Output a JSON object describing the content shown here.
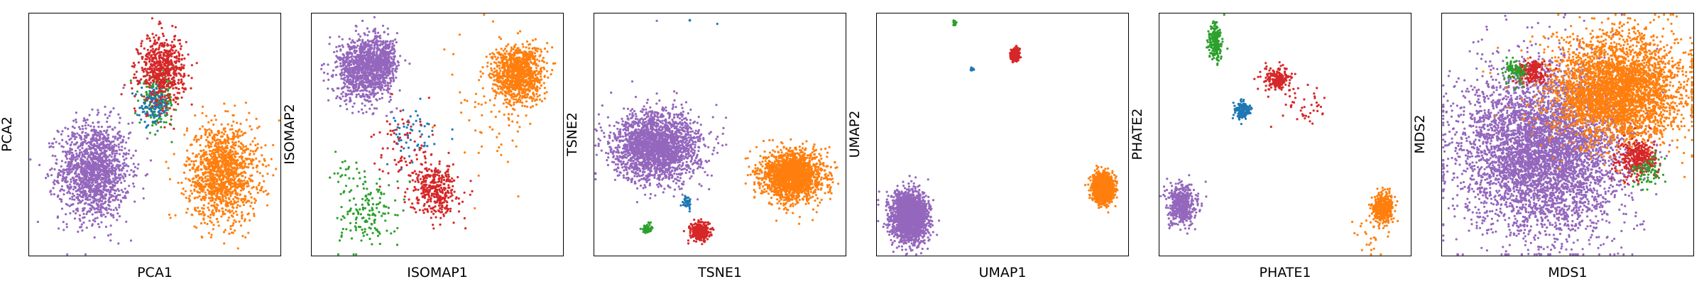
{
  "colors": {
    "blue": "#1f77b4",
    "orange": "#ff7f0e",
    "green": "#2ca02c",
    "red": "#d62728",
    "purple": "#9467bd"
  },
  "chart_data": [
    {
      "type": "scatter",
      "title": "",
      "xlabel": "PCA1",
      "ylabel": "PCA2",
      "ticks": "none",
      "grid": false,
      "legend": "none",
      "xlim": [
        0,
        100
      ],
      "ylim": [
        0,
        100
      ],
      "clusters": [
        {
          "color": "purple",
          "cx": 26,
          "cy": 35,
          "sx": 7,
          "sy": 10,
          "n": 1500
        },
        {
          "color": "orange",
          "cx": 77,
          "cy": 34,
          "sx": 7,
          "sy": 10,
          "n": 1300
        },
        {
          "color": "green",
          "cx": 51,
          "cy": 64,
          "sx": 3.5,
          "sy": 5,
          "n": 180
        },
        {
          "color": "blue",
          "cx": 50,
          "cy": 62,
          "sx": 3,
          "sy": 4,
          "n": 130
        },
        {
          "color": "red",
          "cx": 53,
          "cy": 77,
          "sx": 4.5,
          "sy": 7,
          "n": 600
        }
      ]
    },
    {
      "type": "scatter",
      "title": "",
      "xlabel": "ISOMAP1",
      "ylabel": "ISOMAP2",
      "ticks": "none",
      "grid": false,
      "legend": "none",
      "xlim": [
        0,
        100
      ],
      "ylim": [
        0,
        100
      ],
      "clusters": [
        {
          "color": "purple",
          "cx": 21,
          "cy": 77,
          "sx": 5.5,
          "sy": 6.5,
          "n": 1100
        },
        {
          "color": "purple",
          "cx": 29,
          "cy": 81,
          "sx": 2.5,
          "sy": 5,
          "n": 300
        },
        {
          "color": "orange",
          "cx": 82,
          "cy": 75,
          "sx": 5,
          "sy": 6,
          "n": 1000
        },
        {
          "color": "orange",
          "cx": 72,
          "cy": 58,
          "sx": 8,
          "sy": 15,
          "n": 60
        },
        {
          "color": "blue",
          "cx": 40,
          "cy": 49,
          "sx": 5,
          "sy": 6,
          "n": 60
        },
        {
          "color": "red",
          "cx": 49,
          "cy": 27,
          "sx": 4.5,
          "sy": 5.5,
          "n": 380
        },
        {
          "color": "red",
          "cx": 37,
          "cy": 43,
          "sx": 6,
          "sy": 8,
          "n": 70
        },
        {
          "color": "green",
          "cx": 22,
          "cy": 17,
          "sx": 6,
          "sy": 7,
          "n": 150
        },
        {
          "color": "green",
          "cx": 16,
          "cy": 33,
          "sx": 4,
          "sy": 5,
          "n": 25
        }
      ]
    },
    {
      "type": "scatter",
      "title": "",
      "xlabel": "TSNE1",
      "ylabel": "TSNE2",
      "ticks": "none",
      "grid": false,
      "legend": "none",
      "xlim": [
        0,
        100
      ],
      "ylim": [
        0,
        100
      ],
      "clusters": [
        {
          "color": "purple",
          "cx": 25,
          "cy": 45,
          "sx": 8.5,
          "sy": 7,
          "n": 2200
        },
        {
          "color": "orange",
          "cx": 79,
          "cy": 33,
          "sx": 6,
          "sy": 5,
          "n": 1800
        },
        {
          "color": "blue",
          "cx": 37,
          "cy": 22,
          "sx": 0.8,
          "sy": 1.2,
          "n": 50
        },
        {
          "color": "red",
          "cx": 42,
          "cy": 10,
          "sx": 1.8,
          "sy": 1.8,
          "n": 350
        },
        {
          "color": "green",
          "cx": 21,
          "cy": 11,
          "sx": 0.9,
          "sy": 1.0,
          "n": 60
        },
        {
          "color": "blue",
          "cx": 38,
          "cy": 97,
          "sx": 0.2,
          "sy": 0.2,
          "n": 3
        },
        {
          "color": "purple",
          "cx": 25,
          "cy": 97,
          "sx": 0.2,
          "sy": 0.2,
          "n": 1
        },
        {
          "color": "blue",
          "cx": 49,
          "cy": 96,
          "sx": 0.2,
          "sy": 0.2,
          "n": 1
        }
      ]
    },
    {
      "type": "scatter",
      "title": "",
      "xlabel": "UMAP1",
      "ylabel": "UMAP2",
      "ticks": "none",
      "grid": false,
      "legend": "none",
      "xlim": [
        0,
        100
      ],
      "ylim": [
        0,
        100
      ],
      "clusters": [
        {
          "color": "purple",
          "cx": 13,
          "cy": 16,
          "sx": 3.5,
          "sy": 5,
          "n": 2200
        },
        {
          "color": "orange",
          "cx": 90,
          "cy": 28,
          "sx": 2,
          "sy": 2.8,
          "n": 1500
        },
        {
          "color": "red",
          "cx": 55,
          "cy": 83,
          "sx": 0.9,
          "sy": 1.2,
          "n": 250
        },
        {
          "color": "green",
          "cx": 31,
          "cy": 96,
          "sx": 0.3,
          "sy": 0.4,
          "n": 30
        },
        {
          "color": "blue",
          "cx": 38,
          "cy": 77,
          "sx": 0.3,
          "sy": 0.3,
          "n": 25
        }
      ]
    },
    {
      "type": "scatter",
      "title": "",
      "xlabel": "PHATE1",
      "ylabel": "PHATE2",
      "ticks": "none",
      "grid": false,
      "legend": "none",
      "xlim": [
        0,
        100
      ],
      "ylim": [
        0,
        100
      ],
      "clusters": [
        {
          "color": "purple",
          "cx": 9,
          "cy": 21,
          "sx": 2.8,
          "sy": 4,
          "n": 500
        },
        {
          "color": "orange",
          "cx": 89,
          "cy": 20,
          "sx": 2,
          "sy": 3,
          "n": 450
        },
        {
          "color": "green",
          "cx": 22,
          "cy": 88,
          "sx": 1.2,
          "sy": 4,
          "n": 220
        },
        {
          "color": "blue",
          "cx": 33,
          "cy": 60,
          "sx": 1.6,
          "sy": 1.8,
          "n": 150
        },
        {
          "color": "red",
          "cx": 47,
          "cy": 73,
          "sx": 3,
          "sy": 2.5,
          "n": 200
        },
        {
          "color": "red",
          "cx": 58,
          "cy": 62,
          "sx": 5,
          "sy": 4,
          "n": 40
        },
        {
          "color": "orange",
          "cx": 83,
          "cy": 10,
          "sx": 4,
          "sy": 5,
          "n": 30
        }
      ]
    },
    {
      "type": "scatter",
      "title": "",
      "xlabel": "MDS1",
      "ylabel": "MDS2",
      "ticks": "none",
      "grid": false,
      "legend": "none",
      "xlim": [
        0,
        100
      ],
      "ylim": [
        0,
        100
      ],
      "clusters": [
        {
          "color": "purple",
          "cx": 40,
          "cy": 43,
          "sx": 16,
          "sy": 17,
          "n": 5000
        },
        {
          "color": "orange",
          "cx": 70,
          "cy": 68,
          "sx": 13,
          "sy": 11,
          "n": 3500
        },
        {
          "color": "red",
          "cx": 36,
          "cy": 76,
          "sx": 3,
          "sy": 2.5,
          "n": 180
        },
        {
          "color": "green",
          "cx": 29,
          "cy": 76,
          "sx": 2.5,
          "sy": 2.5,
          "n": 90
        },
        {
          "color": "red",
          "cx": 78,
          "cy": 40,
          "sx": 4,
          "sy": 4,
          "n": 350
        },
        {
          "color": "green",
          "cx": 82,
          "cy": 35,
          "sx": 3,
          "sy": 3,
          "n": 80
        }
      ]
    }
  ]
}
